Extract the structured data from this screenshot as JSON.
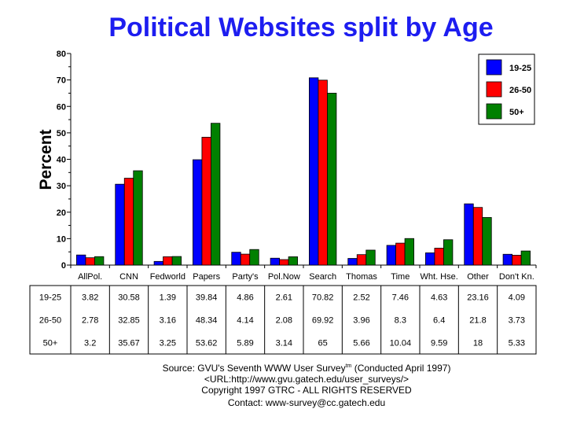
{
  "chart_data": {
    "type": "bar",
    "title": "Political Websites split by Age",
    "ylabel": "Percent",
    "xlabel": "",
    "ylim": [
      0,
      80
    ],
    "yticks": [
      0,
      10,
      20,
      30,
      40,
      50,
      60,
      70,
      80
    ],
    "grid": false,
    "legend_position": "top-right",
    "categories": [
      "AllPol.",
      "CNN",
      "Fedworld",
      "Papers",
      "Party's",
      "Pol.Now",
      "Search",
      "Thomas",
      "Time",
      "Wht. Hse.",
      "Other",
      "Don't Kn."
    ],
    "series": [
      {
        "name": "19-25",
        "color": "#0000ff",
        "values": [
          3.82,
          30.58,
          1.39,
          39.84,
          4.86,
          2.61,
          70.82,
          2.52,
          7.46,
          4.63,
          23.16,
          4.09
        ]
      },
      {
        "name": "26-50",
        "color": "#ff0000",
        "values": [
          2.78,
          32.85,
          3.16,
          48.34,
          4.14,
          2.08,
          69.92,
          3.96,
          8.3,
          6.4,
          21.8,
          3.73
        ]
      },
      {
        "name": "50+",
        "color": "#008000",
        "values": [
          3.2,
          35.67,
          3.25,
          53.62,
          5.89,
          3.14,
          65,
          5.66,
          10.04,
          9.59,
          18,
          5.33
        ]
      }
    ],
    "table": {
      "rows": [
        {
          "label": "19-25",
          "values": [
            "3.82",
            "30.58",
            "1.39",
            "39.84",
            "4.86",
            "2.61",
            "70.82",
            "2.52",
            "7.46",
            "4.63",
            "23.16",
            "4.09"
          ]
        },
        {
          "label": "26-50",
          "values": [
            "2.78",
            "32.85",
            "3.16",
            "48.34",
            "4.14",
            "2.08",
            "69.92",
            "3.96",
            "8.3",
            "6.4",
            "21.8",
            "3.73"
          ]
        },
        {
          "label": "50+",
          "values": [
            "3.2",
            "35.67",
            "3.25",
            "53.62",
            "5.89",
            "3.14",
            "65",
            "5.66",
            "10.04",
            "9.59",
            "18",
            "5.33"
          ]
        }
      ]
    }
  },
  "footer": {
    "source_prefix": "Source: GVU's Seventh WWW User Survey",
    "source_tm": "tm",
    "source_suffix": " (Conducted April 1997)",
    "url": "<URL:http://www.gvu.gatech.edu/user_surveys/>",
    "copyright": "Copyright 1997 GTRC - ALL RIGHTS RESERVED",
    "contact": "Contact: www-survey@cc.gatech.edu"
  }
}
